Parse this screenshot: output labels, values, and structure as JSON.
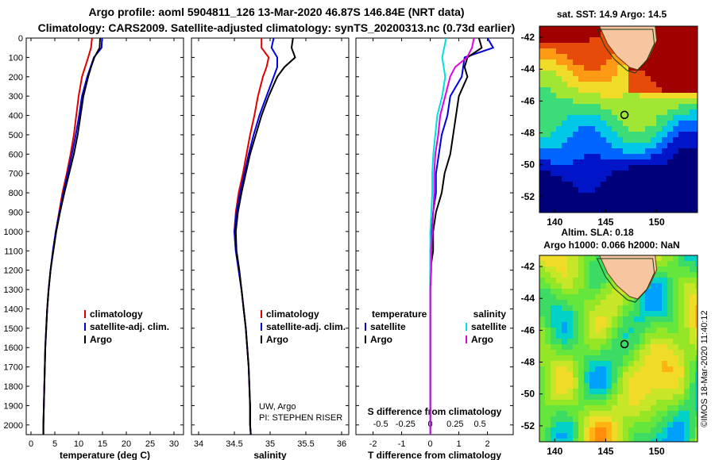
{
  "title_line1": "Argo profile: aoml 5904811_126 13-Mar-2020 46.87S 146.84E (NRT data)",
  "title_line2": "Climatology: CARS2009. Satellite-adjusted climatology: synTS_20200313.nc (0.73d earlier)",
  "sst_title": "sat. SST: 14.9 Argo: 14.5",
  "sla_title1": "Altim. SLA: 0.18",
  "sla_title2": "Argo h1000: 0.066 h2000: NaN",
  "credit": "©IMOS 18-Mar-2020 11:40:12",
  "pi_line1": "UW, Argo",
  "pi_line2": "PI: STEPHEN RISER",
  "colors": {
    "climatology": "#e00000",
    "satellite": "#0000e0",
    "argo": "#000000",
    "s_satellite": "#00e0e0",
    "s_argo": "#e000e0"
  },
  "chart_data": [
    {
      "type": "line",
      "id": "temperature",
      "xlabel": "temperature (deg C)",
      "xlim": [
        -1,
        32
      ],
      "ylim": [
        2050,
        0
      ],
      "xticks": [
        "0",
        "5",
        "10",
        "15",
        "20",
        "25",
        "30"
      ],
      "yticks": [
        "0",
        "100",
        "200",
        "300",
        "400",
        "500",
        "600",
        "700",
        "800",
        "900",
        "1000",
        "1100",
        "1200",
        "1300",
        "1400",
        "1500",
        "1600",
        "1700",
        "1800",
        "1900",
        "2000"
      ],
      "legend": [
        "climatology",
        "satellite-adj. clim.",
        "Argo"
      ],
      "series": [
        {
          "name": "climatology",
          "depth": [
            0,
            50,
            100,
            200,
            300,
            400,
            500,
            600,
            700,
            800,
            900,
            1000,
            1100,
            1200,
            1300,
            1400,
            1500,
            1600,
            1700,
            1800,
            1900,
            2000,
            2050
          ],
          "values": [
            12.8,
            12.6,
            12.0,
            10.7,
            10.0,
            9.5,
            9.0,
            8.3,
            7.5,
            6.6,
            5.9,
            5.2,
            4.6,
            4.1,
            3.7,
            3.4,
            3.2,
            3.0,
            2.9,
            2.8,
            2.7,
            2.6,
            2.6
          ]
        },
        {
          "name": "satellite-adj. clim.",
          "depth": [
            0,
            50,
            100,
            200,
            300,
            400,
            500,
            600,
            700,
            800,
            900,
            1000,
            1100,
            1200,
            1300,
            1400,
            1500,
            1600,
            1700,
            1800,
            1900,
            2000,
            2050
          ],
          "values": [
            14.9,
            14.8,
            13.2,
            11.8,
            10.7,
            10.1,
            9.4,
            8.6,
            7.7,
            6.8,
            6.0,
            5.2,
            4.6,
            4.1,
            3.7,
            3.4,
            3.2,
            3.0,
            2.9,
            2.8,
            2.7,
            2.6,
            2.6
          ]
        },
        {
          "name": "Argo",
          "depth": [
            0,
            50,
            100,
            150,
            200,
            300,
            400,
            500,
            600,
            700,
            800,
            900,
            1000,
            1100,
            1200,
            1300,
            1400,
            1500,
            1600,
            1700,
            1800,
            1900,
            2000,
            2050
          ],
          "values": [
            14.5,
            14.4,
            13.3,
            12.6,
            12.0,
            11.0,
            10.4,
            9.8,
            9.0,
            8.0,
            7.0,
            6.1,
            5.3,
            4.7,
            4.1,
            3.7,
            3.4,
            3.2,
            3.0,
            2.9,
            2.8,
            2.7,
            2.6,
            2.6
          ]
        }
      ]
    },
    {
      "type": "line",
      "id": "salinity",
      "xlabel": "salinity",
      "xlim": [
        33.9,
        36.1
      ],
      "ylim": [
        2050,
        0
      ],
      "xticks": [
        "34",
        "34.5",
        "35",
        "35.5",
        "36"
      ],
      "legend": [
        "climatology",
        "satellite-adj. clim.",
        "Argo"
      ],
      "series": [
        {
          "name": "climatology",
          "depth": [
            0,
            50,
            100,
            150,
            200,
            300,
            400,
            500,
            600,
            700,
            800,
            900,
            1000,
            1100,
            1200,
            1300,
            1400,
            1500,
            1600,
            1700,
            1800,
            1900,
            2000,
            2050
          ],
          "values": [
            34.88,
            34.88,
            34.98,
            34.95,
            34.9,
            34.83,
            34.78,
            34.72,
            34.67,
            34.62,
            34.56,
            34.52,
            34.5,
            34.52,
            34.56,
            34.6,
            34.63,
            34.66,
            34.68,
            34.7,
            34.71,
            34.72,
            34.72,
            34.73
          ]
        },
        {
          "name": "satellite-adj. clim.",
          "depth": [
            0,
            50,
            100,
            150,
            200,
            300,
            400,
            500,
            600,
            700,
            800,
            900,
            1000,
            1100,
            1200,
            1300,
            1400,
            1500,
            1600,
            1700,
            1800,
            1900,
            2000,
            2050
          ],
          "values": [
            35.05,
            35.02,
            35.1,
            35.1,
            35.05,
            34.95,
            34.85,
            34.77,
            34.7,
            34.64,
            34.58,
            34.53,
            34.5,
            34.52,
            34.56,
            34.6,
            34.63,
            34.66,
            34.68,
            34.7,
            34.71,
            34.72,
            34.72,
            34.73
          ]
        },
        {
          "name": "Argo",
          "depth": [
            0,
            50,
            100,
            150,
            200,
            300,
            400,
            500,
            600,
            700,
            800,
            900,
            1000,
            1100,
            1200,
            1300,
            1400,
            1500,
            1600,
            1700,
            1800,
            1900,
            2000,
            2050
          ],
          "values": [
            35.32,
            35.3,
            35.35,
            35.2,
            35.1,
            34.98,
            34.88,
            34.8,
            34.72,
            34.66,
            34.6,
            34.55,
            34.52,
            34.53,
            34.57,
            34.6,
            34.63,
            34.66,
            34.68,
            34.7,
            34.71,
            34.72,
            34.72,
            34.73
          ]
        }
      ]
    },
    {
      "type": "line",
      "id": "difference",
      "xlabel": "T difference from climatology",
      "xlabel2": "S difference from climatology",
      "xlim": [
        -2.6,
        2.9
      ],
      "ylim": [
        2050,
        0
      ],
      "xticks": [
        "-2",
        "-1",
        "0",
        "1",
        "2"
      ],
      "xticks2": [
        "-0.5",
        "-0.25",
        "0",
        "0.25",
        "0.5"
      ],
      "legend_temperature_title": "temperature",
      "legend_temperature": [
        "satellite",
        "Argo"
      ],
      "legend_salinity_title": "salinity",
      "legend_salinity": [
        "satellite",
        "Argo"
      ],
      "series": [
        {
          "name": "T satellite",
          "depth": [
            0,
            50,
            100,
            200,
            300,
            400,
            500,
            600,
            700,
            800,
            900,
            1000,
            1100,
            1200,
            1300,
            1400,
            1500,
            1600,
            1700,
            1800,
            1900,
            2000,
            2050
          ],
          "values": [
            2.0,
            2.2,
            1.2,
            1.1,
            0.7,
            0.6,
            0.4,
            0.3,
            0.2,
            0.2,
            0.1,
            0.05,
            0.0,
            0.0,
            0.0,
            0.0,
            0.0,
            0.0,
            0.0,
            0.0,
            0.0,
            0.0,
            0.0
          ]
        },
        {
          "name": "T Argo",
          "depth": [
            0,
            50,
            100,
            150,
            200,
            300,
            400,
            500,
            600,
            700,
            800,
            900,
            1000,
            1100,
            1200,
            1300,
            1400,
            1500,
            1600,
            1700,
            1800,
            1900,
            2000,
            2050
          ],
          "values": [
            1.7,
            1.8,
            1.3,
            1.2,
            1.3,
            1.0,
            0.9,
            0.8,
            0.7,
            0.5,
            0.4,
            0.2,
            0.1,
            0.1,
            0.0,
            0.0,
            0.0,
            0.0,
            0.0,
            0.0,
            0.0,
            0.0,
            0.0,
            0.0
          ]
        },
        {
          "name": "S satellite",
          "depth": [
            0,
            50,
            100,
            200,
            300,
            400,
            500,
            600,
            700,
            800,
            900,
            1000,
            1100,
            1200,
            1300,
            1400,
            1500,
            1600,
            1700,
            1800,
            1900,
            2000,
            2050
          ],
          "values": [
            0.16,
            0.14,
            0.12,
            0.15,
            0.12,
            0.07,
            0.05,
            0.03,
            0.02,
            0.02,
            0.01,
            0.0,
            0.0,
            0.0,
            0.0,
            0.0,
            0.0,
            0.0,
            0.0,
            0.0,
            0.0,
            0.0,
            0.0
          ]
        },
        {
          "name": "S Argo",
          "depth": [
            0,
            50,
            100,
            150,
            200,
            300,
            400,
            500,
            600,
            700,
            800,
            900,
            1000,
            1100,
            1200,
            1300,
            1400,
            1500,
            1600,
            1700,
            1800,
            1900,
            2000,
            2050
          ],
          "values": [
            0.44,
            0.42,
            0.37,
            0.25,
            0.2,
            0.15,
            0.1,
            0.08,
            0.05,
            0.04,
            0.04,
            0.03,
            0.02,
            0.01,
            0.01,
            0.0,
            0.0,
            0.0,
            0.0,
            0.0,
            0.0,
            0.0,
            0.0,
            0.0
          ]
        }
      ]
    },
    {
      "type": "heatmap",
      "id": "sst-map",
      "xticks": [
        "140",
        "145",
        "150"
      ],
      "yticks": [
        "-42",
        "-44",
        "-46",
        "-48",
        "-50",
        "-52"
      ],
      "xlim": [
        138.5,
        154
      ],
      "ylim": [
        -53,
        -41.3
      ],
      "marker": [
        146.84,
        -46.87
      ]
    },
    {
      "type": "heatmap",
      "id": "sla-map",
      "xticks": [
        "140",
        "145",
        "150"
      ],
      "yticks": [
        "-42",
        "-44",
        "-46",
        "-48",
        "-50",
        "-52"
      ],
      "xlim": [
        138.5,
        154
      ],
      "ylim": [
        -53,
        -41.3
      ],
      "marker": [
        146.84,
        -46.87
      ]
    }
  ]
}
